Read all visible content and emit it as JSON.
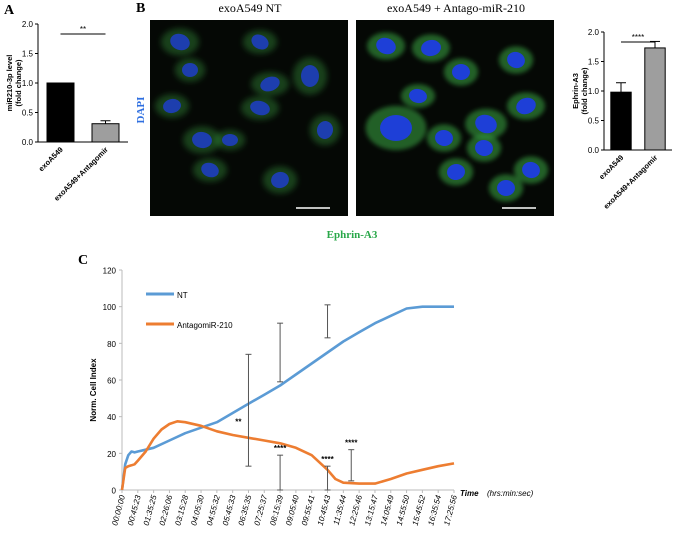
{
  "panels": {
    "a": "A",
    "b": "B",
    "c": "C"
  },
  "microscopy": {
    "left_label": "exoA549 NT",
    "right_label": "exoA549 + Antago-miR-210",
    "dapi_label": "DAPI",
    "ephrin_label": "Ephrin-A3",
    "colors": {
      "nucleus": "#1f3de0",
      "cytoplasm": "#39a845",
      "background": "#050805"
    }
  },
  "chart_data": [
    {
      "id": "A",
      "type": "bar",
      "categories": [
        "exoA549",
        "exoA549+Antagomir"
      ],
      "values": [
        1.0,
        0.31
      ],
      "errors": [
        0,
        0.05
      ],
      "colors": [
        "#000000",
        "#9e9e9e"
      ],
      "ylabel_line1": "miR210-3p level",
      "ylabel_line2": "(fold change)",
      "yticks": [
        "0.0",
        "0.5",
        "1.0",
        "1.5",
        "2.0"
      ],
      "ylim": [
        0,
        2.0
      ],
      "significance": "**"
    },
    {
      "id": "B",
      "type": "bar",
      "categories": [
        "exoA549",
        "exoA549+Antagomir"
      ],
      "values": [
        0.98,
        1.73
      ],
      "errors": [
        0.16,
        0.11
      ],
      "colors": [
        "#000000",
        "#9e9e9e"
      ],
      "ylabel_line1": "Ephrin-A3",
      "ylabel_line2": "(fold change)",
      "yticks": [
        "0.0",
        "0.5",
        "1.0",
        "1.5",
        "2.0"
      ],
      "ylim": [
        0,
        2.0
      ],
      "significance": "****"
    },
    {
      "id": "C",
      "type": "line",
      "ylabel": "Norm. Cell Index",
      "xlabel_bold": "Time",
      "xlabel_italic": "(hrs:min:sec)",
      "yticks": [
        "0",
        "20",
        "40",
        "60",
        "80",
        "100",
        "120"
      ],
      "ylim": [
        0,
        120
      ],
      "xticks": [
        "00:00:00",
        "00:45:23",
        "01:35:25",
        "02:26:06",
        "03:15:28",
        "04:05:30",
        "04:55:32",
        "05:45:33",
        "06:35:35",
        "07:25:37",
        "08:15:39",
        "09:05:40",
        "09:55:41",
        "10:45:43",
        "11:35:44",
        "12:25:46",
        "13:15:47",
        "14:05:49",
        "14:55:50",
        "15:45:52",
        "16:35:54",
        "17:25:56"
      ],
      "xlim": [
        0,
        21
      ],
      "series": [
        {
          "name": "NT",
          "color": "#5b9bd5",
          "x": [
            0,
            0.2,
            0.4,
            0.6,
            0.8,
            1,
            1.5,
            2,
            3,
            4,
            5,
            6,
            7,
            8,
            9,
            10,
            11,
            12,
            13,
            14,
            15,
            16,
            17,
            18,
            19,
            20,
            21
          ],
          "y": [
            0,
            14,
            19,
            21,
            20.5,
            21,
            22,
            23,
            27,
            31,
            34,
            37,
            42,
            47,
            52,
            57,
            63,
            69,
            75,
            81,
            86,
            91,
            95,
            99,
            100,
            100,
            100
          ]
        },
        {
          "name": "AntagomiR-210",
          "color": "#ed7d31",
          "x": [
            0,
            0.2,
            0.4,
            0.6,
            0.8,
            1,
            1.5,
            2,
            2.5,
            3,
            3.5,
            4,
            5,
            6,
            7,
            8,
            9,
            10,
            11,
            12,
            13,
            13.5,
            14,
            15,
            16,
            17,
            18,
            19,
            20,
            21
          ],
          "y": [
            0,
            12,
            13,
            13.5,
            14,
            16,
            21,
            28,
            33,
            36,
            37.5,
            37,
            35,
            32,
            30,
            28.5,
            27,
            25.5,
            23,
            19,
            11,
            6,
            4,
            3.5,
            3.5,
            6,
            9,
            11,
            13,
            14.5
          ]
        }
      ],
      "error_bars": [
        {
          "x": 8,
          "low": 13,
          "high": 74,
          "label": "**"
        },
        {
          "x": 10,
          "low": 59,
          "high": 91,
          "label": ""
        },
        {
          "x": 10,
          "low": 0,
          "high": 19,
          "label": "****"
        },
        {
          "x": 13,
          "low": 83,
          "high": 101,
          "label": ""
        },
        {
          "x": 13,
          "low": 0,
          "high": 13,
          "label": "****"
        },
        {
          "x": 14.5,
          "low": 5,
          "high": 22,
          "label": "****"
        }
      ]
    }
  ]
}
